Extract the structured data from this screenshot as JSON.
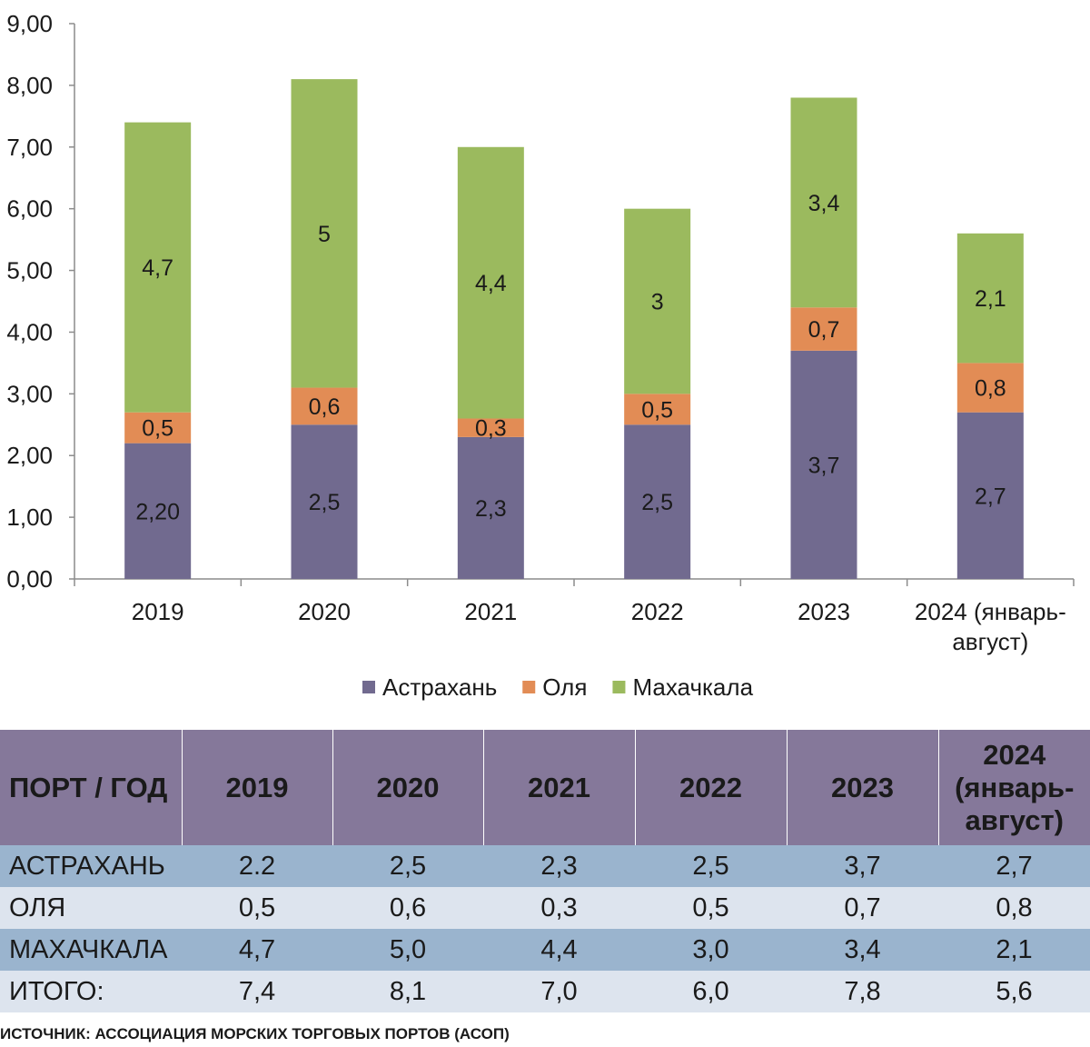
{
  "chart_data": {
    "type": "bar",
    "stacked": true,
    "categories": [
      "2019",
      "2020",
      "2021",
      "2022",
      "2023",
      "2024 (январь-август)"
    ],
    "category_lines": [
      [
        "2019"
      ],
      [
        "2020"
      ],
      [
        "2021"
      ],
      [
        "2022"
      ],
      [
        "2023"
      ],
      [
        "2024 (январь-",
        "август)"
      ]
    ],
    "series": [
      {
        "name": "Астрахань",
        "values": [
          2.2,
          2.5,
          2.3,
          2.5,
          3.7,
          2.7
        ],
        "labels": [
          "2,20",
          "2,5",
          "2,3",
          "2,5",
          "3,7",
          "2,7"
        ],
        "color": "#716a8f"
      },
      {
        "name": "Оля",
        "values": [
          0.5,
          0.6,
          0.3,
          0.5,
          0.7,
          0.8
        ],
        "labels": [
          "0,5",
          "0,6",
          "0,3",
          "0,5",
          "0,7",
          "0,8"
        ],
        "color": "#e28c55"
      },
      {
        "name": "Махачкала",
        "values": [
          4.7,
          5.0,
          4.4,
          3.0,
          3.4,
          2.1
        ],
        "labels": [
          "4,7",
          "5",
          "4,4",
          "3",
          "3,4",
          "2,1"
        ],
        "color": "#9bba5e"
      }
    ],
    "ylim": [
      0,
      9
    ],
    "yticks": [
      "0,00",
      "1,00",
      "2,00",
      "3,00",
      "4,00",
      "5,00",
      "6,00",
      "7,00",
      "8,00",
      "9,00"
    ],
    "grid": false,
    "legend_position": "bottom"
  },
  "table": {
    "header": [
      "ПОРТ / ГОД",
      "2019",
      "2020",
      "2021",
      "2022",
      "2023",
      "2024 (январь-август)"
    ],
    "header_lines": [
      [
        "ПОРТ / ГОД"
      ],
      [
        "2019"
      ],
      [
        "2020"
      ],
      [
        "2021"
      ],
      [
        "2022"
      ],
      [
        "2023"
      ],
      [
        "2024",
        "(январь-",
        "август)"
      ]
    ],
    "rows": [
      [
        "АСТРАХАНЬ",
        "2.2",
        "2,5",
        "2,3",
        "2,5",
        "3,7",
        "2,7"
      ],
      [
        "ОЛЯ",
        "0,5",
        "0,6",
        "0,3",
        "0,5",
        "0,7",
        "0,8"
      ],
      [
        "МАХАЧКАЛА",
        "4,7",
        "5,0",
        "4,4",
        "3,0",
        "3,4",
        "2,1"
      ],
      [
        "ИТОГО:",
        "7,4",
        "8,1",
        "7,0",
        "6,0",
        "7,8",
        "5,6"
      ]
    ]
  },
  "source": "ИСТОЧНИК: АССОЦИАЦИЯ МОРСКИХ ТОРГОВЫХ ПОРТОВ (АСОП)"
}
